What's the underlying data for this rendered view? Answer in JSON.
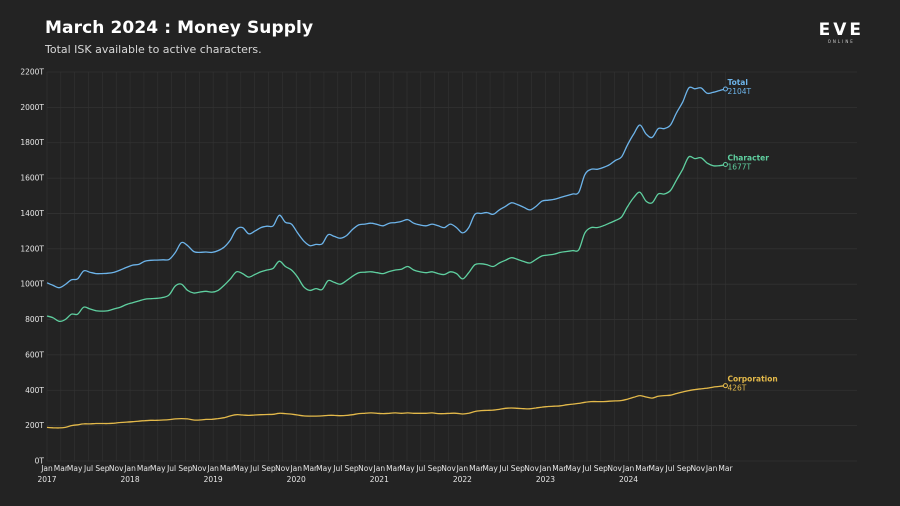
{
  "header": {
    "title": "March 2024 : Money Supply",
    "subtitle": "Total ISK available to active characters."
  },
  "logo": {
    "brand": "EVE",
    "tagline": "ONLINE"
  },
  "colors": {
    "background": "#232323",
    "grid": "#333333",
    "total": "#6db4ea",
    "character": "#5fd0a0",
    "corporation": "#e3b94a"
  },
  "chart_data": {
    "type": "line",
    "title": "March 2024 : Money Supply",
    "subtitle": "Total ISK available to active characters.",
    "xlabel": "",
    "ylabel": "",
    "ylim": [
      0,
      2200
    ],
    "y_unit": "T",
    "y_ticks": [
      "0T",
      "200T",
      "400T",
      "600T",
      "800T",
      "1000T",
      "1200T",
      "1400T",
      "1600T",
      "1800T",
      "2000T",
      "2200T"
    ],
    "x_month_labels": [
      "Jan",
      "Mar",
      "May",
      "Jul",
      "Sep",
      "Nov",
      "Jan",
      "Mar",
      "May",
      "Jul",
      "Sep",
      "Nov",
      "Jan",
      "Mar",
      "May",
      "Jul",
      "Sep",
      "Nov",
      "Jan",
      "Mar",
      "May",
      "Jul",
      "Sep",
      "Nov",
      "Jan",
      "Mar",
      "May",
      "Jul",
      "Sep",
      "Nov",
      "Jan",
      "Mar",
      "May",
      "Jul",
      "Sep",
      "Nov",
      "Jan",
      "Mar",
      "May",
      "Jul",
      "Sep",
      "Nov",
      "Jan",
      "Mar",
      "May",
      "Jul",
      "Sep",
      "Nov",
      "Jan",
      "Mar"
    ],
    "x_year_labels": [
      "2017",
      "2018",
      "2019",
      "2020",
      "2021",
      "2022",
      "2023",
      "2024"
    ],
    "grid": true,
    "legend": "line-end labels",
    "x_start": "2017-01",
    "x_end": "2024-03",
    "series": [
      {
        "name": "Total",
        "end_label": "2104T",
        "color": "#6db4ea",
        "values": [
          1008,
          993,
          980,
          998,
          1025,
          1030,
          1075,
          1068,
          1060,
          1060,
          1062,
          1068,
          1080,
          1095,
          1108,
          1112,
          1130,
          1135,
          1136,
          1138,
          1140,
          1180,
          1235,
          1218,
          1185,
          1180,
          1182,
          1180,
          1190,
          1210,
          1250,
          1310,
          1320,
          1285,
          1300,
          1320,
          1328,
          1330,
          1390,
          1350,
          1340,
          1290,
          1245,
          1218,
          1225,
          1228,
          1280,
          1270,
          1260,
          1275,
          1310,
          1335,
          1340,
          1345,
          1338,
          1330,
          1345,
          1348,
          1355,
          1365,
          1345,
          1335,
          1330,
          1340,
          1330,
          1320,
          1340,
          1320,
          1290,
          1320,
          1395,
          1400,
          1405,
          1395,
          1420,
          1440,
          1460,
          1450,
          1435,
          1420,
          1440,
          1470,
          1475,
          1480,
          1490,
          1500,
          1510,
          1520,
          1620,
          1650,
          1650,
          1660,
          1675,
          1700,
          1720,
          1790,
          1850,
          1900,
          1850,
          1830,
          1880,
          1880,
          1900,
          1970,
          2030,
          2110,
          2105,
          2110,
          2080,
          2085,
          2095,
          2104
        ]
      },
      {
        "name": "Character",
        "end_label": "1677T",
        "color": "#5fd0a0",
        "values": [
          820,
          810,
          790,
          800,
          830,
          830,
          870,
          860,
          850,
          848,
          850,
          860,
          870,
          885,
          895,
          905,
          915,
          918,
          920,
          925,
          940,
          990,
          1000,
          965,
          950,
          955,
          960,
          955,
          965,
          995,
          1030,
          1070,
          1060,
          1040,
          1055,
          1070,
          1080,
          1090,
          1130,
          1100,
          1080,
          1040,
          985,
          965,
          975,
          970,
          1020,
          1010,
          1000,
          1020,
          1045,
          1065,
          1068,
          1070,
          1065,
          1060,
          1072,
          1080,
          1085,
          1100,
          1080,
          1070,
          1065,
          1070,
          1060,
          1055,
          1070,
          1060,
          1030,
          1065,
          1110,
          1115,
          1110,
          1100,
          1120,
          1135,
          1150,
          1140,
          1128,
          1120,
          1140,
          1160,
          1165,
          1170,
          1180,
          1185,
          1190,
          1195,
          1290,
          1320,
          1320,
          1330,
          1345,
          1360,
          1380,
          1440,
          1490,
          1520,
          1470,
          1460,
          1510,
          1510,
          1530,
          1590,
          1650,
          1720,
          1710,
          1715,
          1685,
          1670,
          1670,
          1677
        ]
      },
      {
        "name": "Corporation",
        "end_label": "426T",
        "color": "#e3b94a",
        "values": [
          190,
          188,
          187,
          190,
          200,
          205,
          210,
          210,
          212,
          212,
          212,
          214,
          218,
          220,
          222,
          225,
          228,
          230,
          230,
          232,
          234,
          238,
          240,
          238,
          232,
          232,
          235,
          236,
          240,
          245,
          255,
          262,
          260,
          258,
          260,
          262,
          263,
          264,
          270,
          268,
          265,
          260,
          255,
          254,
          254,
          255,
          258,
          258,
          256,
          258,
          262,
          268,
          270,
          272,
          270,
          268,
          270,
          272,
          270,
          272,
          270,
          270,
          270,
          272,
          268,
          268,
          270,
          270,
          266,
          270,
          280,
          285,
          286,
          288,
          292,
          298,
          300,
          298,
          296,
          295,
          300,
          305,
          308,
          310,
          312,
          318,
          322,
          326,
          332,
          336,
          336,
          336,
          338,
          340,
          342,
          350,
          360,
          370,
          362,
          356,
          366,
          370,
          372,
          382,
          390,
          398,
          404,
          408,
          412,
          418,
          422,
          426
        ]
      }
    ]
  }
}
